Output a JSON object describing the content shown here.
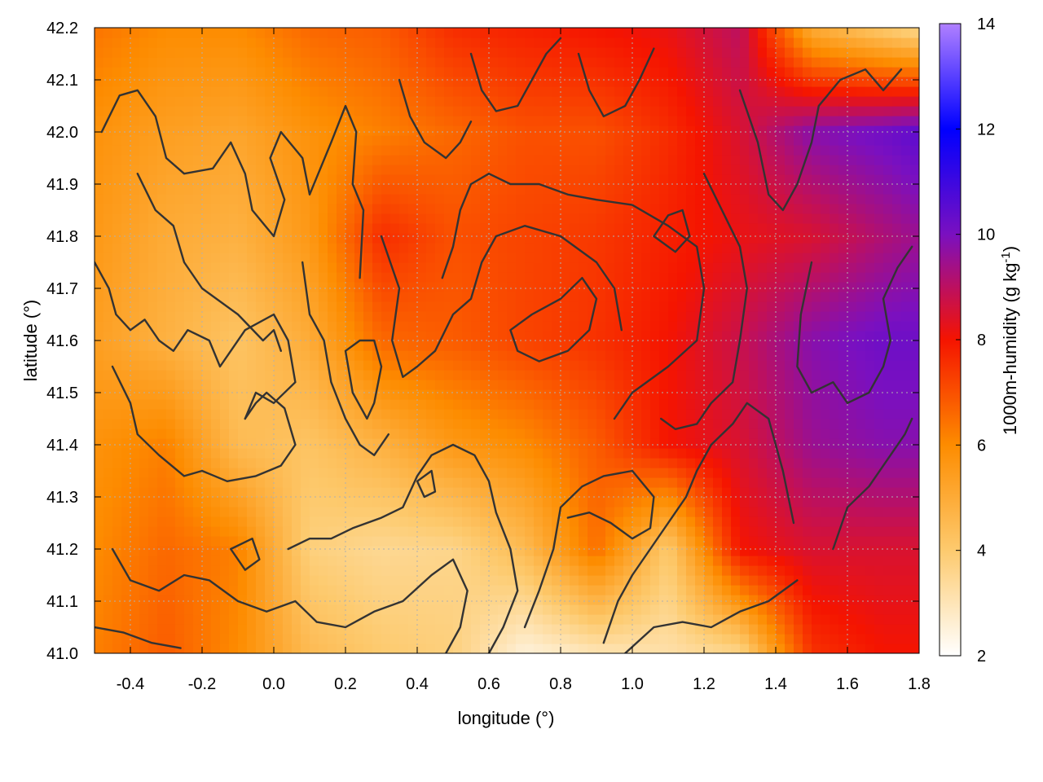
{
  "chart_data": {
    "type": "heatmap",
    "xlabel": "longitude (°)",
    "ylabel": "latitude (°)",
    "colorbar_label": "1000m-humidity (g kg-1)",
    "colorbar_label_parts": {
      "main": "1000m-humidity (g kg",
      "sup": "-1",
      "end": ")"
    },
    "xlim": [
      -0.5,
      1.8
    ],
    "ylim": [
      41.0,
      42.2
    ],
    "clim": [
      2,
      14
    ],
    "x_ticks": [
      -0.4,
      -0.2,
      0.0,
      0.2,
      0.4,
      0.6,
      0.8,
      1.0,
      1.2,
      1.4,
      1.6,
      1.8
    ],
    "x_tick_labels": [
      "-0.4",
      "-0.2",
      "0.0",
      "0.2",
      "0.4",
      "0.6",
      "0.8",
      "1.0",
      "1.2",
      "1.4",
      "1.6",
      "1.8"
    ],
    "y_ticks": [
      41.0,
      41.1,
      41.2,
      41.3,
      41.4,
      41.5,
      41.6,
      41.7,
      41.8,
      41.9,
      42.0,
      42.1,
      42.2
    ],
    "y_tick_labels": [
      "41.0",
      "41.1",
      "41.2",
      "41.3",
      "41.4",
      "41.5",
      "41.6",
      "41.7",
      "41.8",
      "41.9",
      "42.0",
      "42.1",
      "42.2"
    ],
    "colorbar_ticks": [
      2,
      4,
      6,
      8,
      10,
      12,
      14
    ],
    "colorbar_tick_labels": [
      "2",
      "4",
      "6",
      "8",
      "10",
      "12",
      "14"
    ],
    "grid": true,
    "colormap_stops": [
      {
        "value": 2,
        "color": "#ffffff"
      },
      {
        "value": 4,
        "color": "#fdca6e"
      },
      {
        "value": 6,
        "color": "#fd8c00"
      },
      {
        "value": 7,
        "color": "#fa5000"
      },
      {
        "value": 8,
        "color": "#f51400"
      },
      {
        "value": 9,
        "color": "#bc1060"
      },
      {
        "value": 10,
        "color": "#7a10c0"
      },
      {
        "value": 12,
        "color": "#0000ff"
      },
      {
        "value": 14,
        "color": "#b080ff"
      }
    ],
    "field_samples": {
      "lon": [
        -0.5,
        -0.3,
        -0.1,
        0.1,
        0.3,
        0.5,
        0.7,
        0.9,
        1.1,
        1.3,
        1.5,
        1.7,
        1.8
      ],
      "lat": [
        41.0,
        41.2,
        41.4,
        41.6,
        41.8,
        42.0,
        42.2
      ],
      "values": [
        [
          6.2,
          6.8,
          6.0,
          4.5,
          4.0,
          3.8,
          2.5,
          3.0,
          3.2,
          3.6,
          7.5,
          8.0,
          8.0
        ],
        [
          6.0,
          6.6,
          6.2,
          3.8,
          3.5,
          3.6,
          4.5,
          6.5,
          4.0,
          8.0,
          8.5,
          8.5,
          8.5
        ],
        [
          5.8,
          6.2,
          4.5,
          4.2,
          4.8,
          5.6,
          6.0,
          6.8,
          8.0,
          8.5,
          9.5,
          9.8,
          9.8
        ],
        [
          5.4,
          4.8,
          4.2,
          5.0,
          6.6,
          6.8,
          7.2,
          7.5,
          8.0,
          8.8,
          9.8,
          10.2,
          10.2
        ],
        [
          5.6,
          5.0,
          4.8,
          5.6,
          7.6,
          7.0,
          7.2,
          7.4,
          7.8,
          8.2,
          8.5,
          9.2,
          9.5
        ],
        [
          5.8,
          5.4,
          5.2,
          5.8,
          6.2,
          6.6,
          7.0,
          7.0,
          7.6,
          8.5,
          9.8,
          10.2,
          10.5
        ],
        [
          6.4,
          6.0,
          6.0,
          6.6,
          6.8,
          7.6,
          7.8,
          8.0,
          8.2,
          9.0,
          5.0,
          4.0,
          3.5
        ]
      ]
    },
    "contours": [
      [
        [
          -0.48,
          42.0
        ],
        [
          -0.43,
          42.07
        ],
        [
          -0.38,
          42.08
        ],
        [
          -0.33,
          42.03
        ],
        [
          -0.3,
          41.95
        ],
        [
          -0.25,
          41.92
        ],
        [
          -0.17,
          41.93
        ],
        [
          -0.12,
          41.98
        ],
        [
          -0.08,
          41.92
        ],
        [
          -0.06,
          41.85
        ],
        [
          0.0,
          41.8
        ],
        [
          0.03,
          41.87
        ],
        [
          -0.01,
          41.95
        ],
        [
          0.02,
          42.0
        ],
        [
          0.08,
          41.95
        ],
        [
          0.1,
          41.88
        ],
        [
          0.16,
          41.98
        ],
        [
          0.2,
          42.05
        ],
        [
          0.23,
          42.0
        ],
        [
          0.22,
          41.9
        ],
        [
          0.25,
          41.85
        ],
        [
          0.24,
          41.72
        ]
      ],
      [
        [
          -0.38,
          41.92
        ],
        [
          -0.33,
          41.85
        ],
        [
          -0.28,
          41.82
        ],
        [
          -0.25,
          41.75
        ],
        [
          -0.2,
          41.7
        ],
        [
          -0.1,
          41.65
        ],
        [
          -0.03,
          41.6
        ],
        [
          0.0,
          41.62
        ],
        [
          0.02,
          41.58
        ]
      ],
      [
        [
          -0.5,
          41.75
        ],
        [
          -0.46,
          41.7
        ],
        [
          -0.44,
          41.65
        ],
        [
          -0.4,
          41.62
        ],
        [
          -0.36,
          41.64
        ],
        [
          -0.32,
          41.6
        ],
        [
          -0.28,
          41.58
        ],
        [
          -0.24,
          41.62
        ],
        [
          -0.18,
          41.6
        ],
        [
          -0.15,
          41.55
        ],
        [
          -0.12,
          41.58
        ],
        [
          -0.08,
          41.62
        ],
        [
          0.0,
          41.65
        ],
        [
          0.04,
          41.6
        ],
        [
          0.06,
          41.52
        ],
        [
          0.0,
          41.48
        ],
        [
          -0.05,
          41.5
        ],
        [
          -0.08,
          41.45
        ]
      ],
      [
        [
          -0.45,
          41.55
        ],
        [
          -0.4,
          41.48
        ],
        [
          -0.38,
          41.42
        ],
        [
          -0.32,
          41.38
        ],
        [
          -0.25,
          41.34
        ],
        [
          -0.2,
          41.35
        ],
        [
          -0.13,
          41.33
        ],
        [
          -0.05,
          41.34
        ],
        [
          0.02,
          41.36
        ],
        [
          0.06,
          41.4
        ],
        [
          0.03,
          41.47
        ],
        [
          -0.02,
          41.5
        ],
        [
          -0.05,
          41.48
        ],
        [
          -0.08,
          41.45
        ]
      ],
      [
        [
          0.08,
          41.75
        ],
        [
          0.1,
          41.65
        ],
        [
          0.14,
          41.6
        ],
        [
          0.16,
          41.52
        ],
        [
          0.2,
          41.45
        ],
        [
          0.24,
          41.4
        ],
        [
          0.28,
          41.38
        ],
        [
          0.32,
          41.42
        ]
      ],
      [
        [
          0.2,
          41.58
        ],
        [
          0.22,
          41.5
        ],
        [
          0.26,
          41.45
        ],
        [
          0.28,
          41.48
        ],
        [
          0.3,
          41.55
        ],
        [
          0.28,
          41.6
        ],
        [
          0.24,
          41.6
        ],
        [
          0.2,
          41.58
        ]
      ],
      [
        [
          0.3,
          41.8
        ],
        [
          0.35,
          41.7
        ],
        [
          0.33,
          41.6
        ],
        [
          0.36,
          41.53
        ],
        [
          0.4,
          41.55
        ],
        [
          0.45,
          41.58
        ],
        [
          0.5,
          41.65
        ],
        [
          0.55,
          41.68
        ],
        [
          0.58,
          41.75
        ],
        [
          0.62,
          41.8
        ],
        [
          0.7,
          41.82
        ],
        [
          0.8,
          41.8
        ],
        [
          0.9,
          41.75
        ],
        [
          0.95,
          41.7
        ],
        [
          0.97,
          41.62
        ]
      ],
      [
        [
          0.47,
          41.72
        ],
        [
          0.5,
          41.78
        ],
        [
          0.52,
          41.85
        ],
        [
          0.55,
          41.9
        ],
        [
          0.6,
          41.92
        ],
        [
          0.66,
          41.9
        ],
        [
          0.74,
          41.9
        ],
        [
          0.82,
          41.88
        ],
        [
          0.9,
          41.87
        ],
        [
          1.0,
          41.86
        ],
        [
          1.1,
          41.82
        ],
        [
          1.18,
          41.78
        ],
        [
          1.2,
          41.7
        ],
        [
          1.18,
          41.6
        ],
        [
          1.1,
          41.55
        ],
        [
          1.0,
          41.5
        ],
        [
          0.95,
          41.45
        ]
      ],
      [
        [
          1.2,
          41.92
        ],
        [
          1.25,
          41.85
        ],
        [
          1.3,
          41.78
        ],
        [
          1.32,
          41.7
        ],
        [
          1.3,
          41.6
        ],
        [
          1.28,
          41.52
        ],
        [
          1.22,
          41.48
        ],
        [
          1.18,
          41.44
        ],
        [
          1.12,
          41.43
        ],
        [
          1.08,
          41.45
        ]
      ],
      [
        [
          1.3,
          42.08
        ],
        [
          1.35,
          41.98
        ],
        [
          1.38,
          41.88
        ],
        [
          1.42,
          41.85
        ],
        [
          1.46,
          41.9
        ],
        [
          1.5,
          41.98
        ],
        [
          1.52,
          42.05
        ],
        [
          1.58,
          42.1
        ],
        [
          1.65,
          42.12
        ],
        [
          1.7,
          42.08
        ],
        [
          1.75,
          42.12
        ]
      ],
      [
        [
          1.5,
          41.75
        ],
        [
          1.47,
          41.65
        ],
        [
          1.46,
          41.55
        ],
        [
          1.5,
          41.5
        ],
        [
          1.56,
          41.52
        ],
        [
          1.6,
          41.48
        ],
        [
          1.66,
          41.5
        ],
        [
          1.7,
          41.55
        ],
        [
          1.72,
          41.6
        ],
        [
          1.7,
          41.68
        ],
        [
          1.74,
          41.74
        ],
        [
          1.78,
          41.78
        ]
      ],
      [
        [
          1.56,
          41.2
        ],
        [
          1.6,
          41.28
        ],
        [
          1.66,
          41.32
        ],
        [
          1.72,
          41.38
        ],
        [
          1.76,
          41.42
        ],
        [
          1.78,
          41.45
        ]
      ],
      [
        [
          1.45,
          41.25
        ],
        [
          1.42,
          41.35
        ],
        [
          1.4,
          41.4
        ],
        [
          1.38,
          41.45
        ],
        [
          1.32,
          41.48
        ],
        [
          1.28,
          41.44
        ],
        [
          1.22,
          41.4
        ],
        [
          1.18,
          41.35
        ],
        [
          1.15,
          41.3
        ],
        [
          1.1,
          41.25
        ],
        [
          1.05,
          41.2
        ],
        [
          1.0,
          41.15
        ],
        [
          0.96,
          41.1
        ],
        [
          0.92,
          41.02
        ]
      ],
      [
        [
          0.7,
          41.05
        ],
        [
          0.74,
          41.12
        ],
        [
          0.78,
          41.2
        ],
        [
          0.8,
          41.28
        ],
        [
          0.86,
          41.32
        ],
        [
          0.92,
          41.34
        ],
        [
          1.0,
          41.35
        ],
        [
          1.06,
          41.3
        ],
        [
          1.05,
          41.24
        ],
        [
          1.0,
          41.22
        ],
        [
          0.94,
          41.25
        ],
        [
          0.88,
          41.27
        ],
        [
          0.82,
          41.26
        ]
      ],
      [
        [
          0.98,
          41.0
        ],
        [
          1.06,
          41.05
        ],
        [
          1.14,
          41.06
        ],
        [
          1.22,
          41.05
        ],
        [
          1.3,
          41.08
        ],
        [
          1.38,
          41.1
        ],
        [
          1.46,
          41.14
        ]
      ],
      [
        [
          0.6,
          41.0
        ],
        [
          0.64,
          41.05
        ],
        [
          0.68,
          41.12
        ],
        [
          0.66,
          41.2
        ],
        [
          0.62,
          41.27
        ],
        [
          0.6,
          41.33
        ],
        [
          0.56,
          41.38
        ],
        [
          0.5,
          41.4
        ],
        [
          0.44,
          41.38
        ],
        [
          0.4,
          41.34
        ],
        [
          0.36,
          41.28
        ],
        [
          0.3,
          41.26
        ],
        [
          0.22,
          41.24
        ],
        [
          0.16,
          41.22
        ],
        [
          0.1,
          41.22
        ],
        [
          0.04,
          41.2
        ]
      ],
      [
        [
          -0.45,
          41.2
        ],
        [
          -0.4,
          41.14
        ],
        [
          -0.32,
          41.12
        ],
        [
          -0.25,
          41.15
        ],
        [
          -0.18,
          41.14
        ],
        [
          -0.1,
          41.1
        ],
        [
          -0.02,
          41.08
        ],
        [
          0.06,
          41.1
        ],
        [
          0.12,
          41.06
        ],
        [
          0.2,
          41.05
        ],
        [
          0.28,
          41.08
        ],
        [
          0.36,
          41.1
        ],
        [
          0.44,
          41.15
        ],
        [
          0.5,
          41.18
        ],
        [
          0.54,
          41.12
        ],
        [
          0.52,
          41.05
        ],
        [
          0.48,
          41.0
        ]
      ],
      [
        [
          -0.5,
          41.05
        ],
        [
          -0.42,
          41.04
        ],
        [
          -0.34,
          41.02
        ],
        [
          -0.26,
          41.01
        ]
      ],
      [
        [
          0.72,
          41.65
        ],
        [
          0.8,
          41.68
        ],
        [
          0.86,
          41.72
        ],
        [
          0.9,
          41.68
        ],
        [
          0.88,
          41.62
        ],
        [
          0.82,
          41.58
        ],
        [
          0.74,
          41.56
        ],
        [
          0.68,
          41.58
        ],
        [
          0.66,
          41.62
        ],
        [
          0.72,
          41.65
        ]
      ],
      [
        [
          0.55,
          42.15
        ],
        [
          0.58,
          42.08
        ],
        [
          0.62,
          42.04
        ],
        [
          0.68,
          42.05
        ],
        [
          0.72,
          42.1
        ],
        [
          0.76,
          42.15
        ],
        [
          0.8,
          42.18
        ]
      ],
      [
        [
          0.35,
          42.1
        ],
        [
          0.38,
          42.03
        ],
        [
          0.42,
          41.98
        ],
        [
          0.48,
          41.95
        ],
        [
          0.52,
          41.98
        ],
        [
          0.55,
          42.02
        ]
      ],
      [
        [
          0.85,
          42.15
        ],
        [
          0.88,
          42.08
        ],
        [
          0.92,
          42.03
        ],
        [
          0.98,
          42.05
        ],
        [
          1.02,
          42.1
        ],
        [
          1.06,
          42.16
        ]
      ],
      [
        [
          0.4,
          41.33
        ],
        [
          0.42,
          41.3
        ],
        [
          0.45,
          41.31
        ],
        [
          0.44,
          41.35
        ],
        [
          0.4,
          41.33
        ]
      ],
      [
        [
          1.06,
          41.8
        ],
        [
          1.1,
          41.84
        ],
        [
          1.14,
          41.85
        ],
        [
          1.16,
          41.8
        ],
        [
          1.12,
          41.77
        ],
        [
          1.06,
          41.8
        ]
      ],
      [
        [
          -0.12,
          41.2
        ],
        [
          -0.08,
          41.16
        ],
        [
          -0.04,
          41.18
        ],
        [
          -0.06,
          41.22
        ],
        [
          -0.12,
          41.2
        ]
      ]
    ]
  }
}
